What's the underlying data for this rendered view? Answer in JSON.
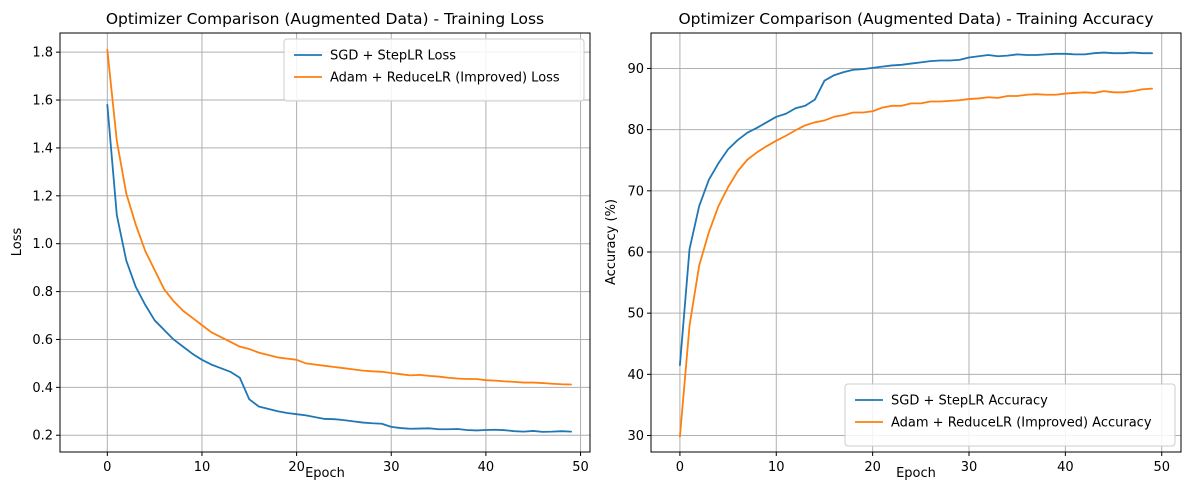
{
  "colors": {
    "series_1": "#1f77b4",
    "series_2": "#ff7f0e",
    "grid": "#b0b0b0"
  },
  "chart_data": [
    {
      "type": "line",
      "title": "Optimizer Comparison (Augmented Data) - Training Loss",
      "xlabel": "Epoch",
      "ylabel": "Loss",
      "xlim": [
        -5,
        51
      ],
      "ylim": [
        0.13,
        1.88
      ],
      "xticks": [
        0,
        10,
        20,
        30,
        40,
        50
      ],
      "yticks": [
        0.2,
        0.4,
        0.6,
        0.8,
        1.0,
        1.2,
        1.4,
        1.6,
        1.8
      ],
      "ytick_decimals": 1,
      "grid": true,
      "legend_position": "upper right",
      "series": [
        {
          "name": "SGD + StepLR Loss",
          "color": "#1f77b4",
          "x": [
            0,
            1,
            2,
            3,
            4,
            5,
            6,
            7,
            8,
            9,
            10,
            11,
            12,
            13,
            14,
            15,
            16,
            17,
            18,
            19,
            20,
            21,
            22,
            23,
            24,
            25,
            26,
            27,
            28,
            29,
            30,
            31,
            32,
            33,
            34,
            35,
            36,
            37,
            38,
            39,
            40,
            41,
            42,
            43,
            44,
            45,
            46,
            47,
            48,
            49
          ],
          "values": [
            1.58,
            1.12,
            0.93,
            0.82,
            0.745,
            0.68,
            0.64,
            0.6,
            0.57,
            0.54,
            0.515,
            0.495,
            0.48,
            0.465,
            0.44,
            0.35,
            0.32,
            0.31,
            0.3,
            0.293,
            0.288,
            0.283,
            0.275,
            0.268,
            0.267,
            0.263,
            0.258,
            0.253,
            0.25,
            0.248,
            0.235,
            0.23,
            0.227,
            0.228,
            0.229,
            0.225,
            0.225,
            0.226,
            0.222,
            0.22,
            0.222,
            0.223,
            0.221,
            0.217,
            0.215,
            0.218,
            0.214,
            0.215,
            0.217,
            0.215
          ]
        },
        {
          "name": "Adam + ReduceLR (Improved) Loss",
          "color": "#ff7f0e",
          "x": [
            0,
            1,
            2,
            3,
            4,
            5,
            6,
            7,
            8,
            9,
            10,
            11,
            12,
            13,
            14,
            15,
            16,
            17,
            18,
            19,
            20,
            21,
            22,
            23,
            24,
            25,
            26,
            27,
            28,
            29,
            30,
            31,
            32,
            33,
            34,
            35,
            36,
            37,
            38,
            39,
            40,
            41,
            42,
            43,
            44,
            45,
            46,
            47,
            48,
            49
          ],
          "values": [
            1.81,
            1.43,
            1.21,
            1.08,
            0.97,
            0.89,
            0.81,
            0.76,
            0.72,
            0.69,
            0.66,
            0.63,
            0.61,
            0.59,
            0.57,
            0.56,
            0.545,
            0.535,
            0.525,
            0.52,
            0.515,
            0.5,
            0.495,
            0.49,
            0.485,
            0.48,
            0.475,
            0.47,
            0.467,
            0.465,
            0.46,
            0.455,
            0.45,
            0.452,
            0.448,
            0.445,
            0.44,
            0.437,
            0.435,
            0.435,
            0.43,
            0.428,
            0.425,
            0.423,
            0.42,
            0.42,
            0.418,
            0.415,
            0.413,
            0.412
          ]
        }
      ]
    },
    {
      "type": "line",
      "title": "Optimizer Comparison (Augmented Data) - Training Accuracy",
      "xlabel": "Epoch",
      "ylabel": "Accuracy (%)",
      "xlim": [
        -3,
        52
      ],
      "ylim": [
        27.3,
        95.8
      ],
      "xticks": [
        0,
        10,
        20,
        30,
        40,
        50
      ],
      "yticks": [
        30,
        40,
        50,
        60,
        70,
        80,
        90
      ],
      "ytick_decimals": 0,
      "grid": true,
      "legend_position": "lower right",
      "series": [
        {
          "name": "SGD + StepLR Accuracy",
          "color": "#1f77b4",
          "x": [
            0,
            1,
            2,
            3,
            4,
            5,
            6,
            7,
            8,
            9,
            10,
            11,
            12,
            13,
            14,
            15,
            16,
            17,
            18,
            19,
            20,
            21,
            22,
            23,
            24,
            25,
            26,
            27,
            28,
            29,
            30,
            31,
            32,
            33,
            34,
            35,
            36,
            37,
            38,
            39,
            40,
            41,
            42,
            43,
            44,
            45,
            46,
            47,
            48,
            49
          ],
          "values": [
            41.5,
            60.5,
            67.5,
            71.8,
            74.5,
            76.8,
            78.3,
            79.5,
            80.3,
            81.2,
            82.1,
            82.6,
            83.5,
            83.9,
            84.9,
            88.0,
            88.9,
            89.4,
            89.8,
            89.9,
            90.1,
            90.3,
            90.5,
            90.6,
            90.8,
            91.0,
            91.2,
            91.3,
            91.3,
            91.4,
            91.8,
            92.0,
            92.2,
            92.0,
            92.1,
            92.3,
            92.2,
            92.2,
            92.3,
            92.4,
            92.4,
            92.3,
            92.3,
            92.5,
            92.6,
            92.5,
            92.5,
            92.6,
            92.5,
            92.5
          ]
        },
        {
          "name": "Adam + ReduceLR (Improved) Accuracy",
          "color": "#ff7f0e",
          "x": [
            0,
            1,
            2,
            3,
            4,
            5,
            6,
            7,
            8,
            9,
            10,
            11,
            12,
            13,
            14,
            15,
            16,
            17,
            18,
            19,
            20,
            21,
            22,
            23,
            24,
            25,
            26,
            27,
            28,
            29,
            30,
            31,
            32,
            33,
            34,
            35,
            36,
            37,
            38,
            39,
            40,
            41,
            42,
            43,
            44,
            45,
            46,
            47,
            48,
            49
          ],
          "values": [
            29.8,
            48.0,
            57.8,
            63.2,
            67.5,
            70.6,
            73.2,
            75.1,
            76.3,
            77.3,
            78.2,
            79.0,
            79.9,
            80.7,
            81.2,
            81.5,
            82.1,
            82.4,
            82.8,
            82.8,
            83.0,
            83.6,
            83.9,
            83.9,
            84.3,
            84.3,
            84.6,
            84.6,
            84.7,
            84.8,
            85.0,
            85.1,
            85.3,
            85.2,
            85.5,
            85.5,
            85.7,
            85.8,
            85.7,
            85.7,
            85.9,
            86.0,
            86.1,
            86.0,
            86.3,
            86.1,
            86.1,
            86.3,
            86.6,
            86.7
          ]
        }
      ]
    }
  ]
}
